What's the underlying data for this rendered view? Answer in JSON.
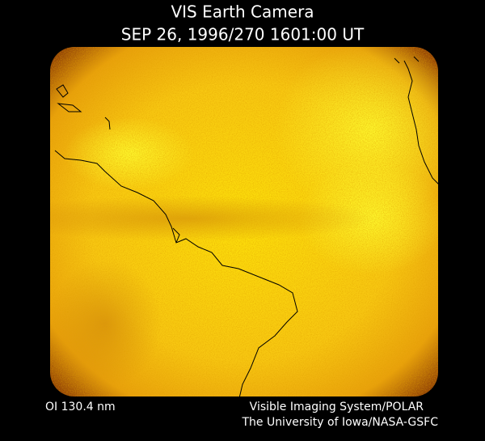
{
  "header": {
    "title": "VIS Earth Camera",
    "subtitle": "SEP 26, 1996/270 1601:00 UT"
  },
  "footer": {
    "filter": "OI  130.4 nm",
    "instrument": "Visible Imaging System/POLAR",
    "credit": "The University of Iowa/NASA-GSFC"
  }
}
